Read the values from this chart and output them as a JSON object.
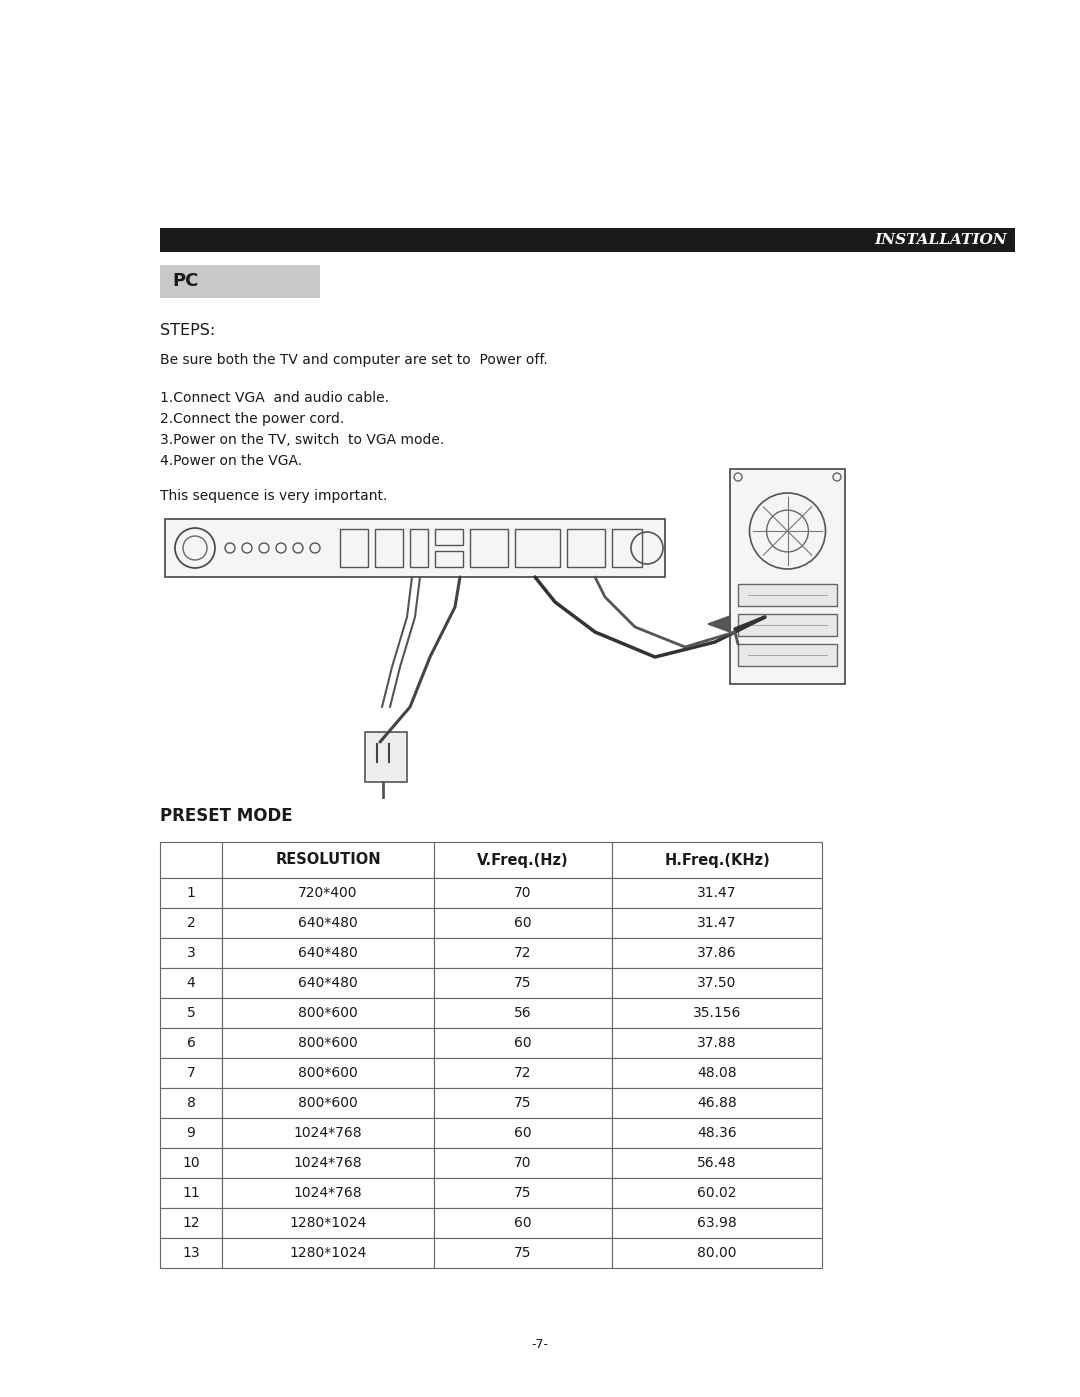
{
  "page_bg": "#ffffff",
  "header_bar_color": "#1a1a1a",
  "header_text": "INSTALLATION",
  "pc_label": "PC",
  "steps_title": "STEPS:",
  "steps_intro": "Be sure both the TV and computer are set to  Power off.",
  "steps_list": [
    "1.Connect VGA  and audio cable.",
    "2.Connect the power cord.",
    "3.Power on the TV, switch  to VGA mode.",
    "4.Power on the VGA."
  ],
  "sequence_text": "This sequence is very important.",
  "preset_mode_title": "PRESET MODE",
  "table_headers": [
    "",
    "RESOLUTION",
    "V.Freq.(Hz)",
    "H.Freq.(KHz)"
  ],
  "table_rows": [
    [
      "1",
      "720*400",
      "70",
      "31.47"
    ],
    [
      "2",
      "640*480",
      "60",
      "31.47"
    ],
    [
      "3",
      "640*480",
      "72",
      "37.86"
    ],
    [
      "4",
      "640*480",
      "75",
      "37.50"
    ],
    [
      "5",
      "800*600",
      "56",
      "35.156"
    ],
    [
      "6",
      "800*600",
      "60",
      "37.88"
    ],
    [
      "7",
      "800*600",
      "72",
      "48.08"
    ],
    [
      "8",
      "800*600",
      "75",
      "46.88"
    ],
    [
      "9",
      "1024*768",
      "60",
      "48.36"
    ],
    [
      "10",
      "1024*768",
      "70",
      "56.48"
    ],
    [
      "11",
      "1024*768",
      "75",
      "60.02"
    ],
    [
      "12",
      "1280*1024",
      "60",
      "63.98"
    ],
    [
      "13",
      "1280*1024",
      "75",
      "80.00"
    ]
  ],
  "page_number": "-7-",
  "text_color": "#1a1a1a",
  "table_border_color": "#666666"
}
